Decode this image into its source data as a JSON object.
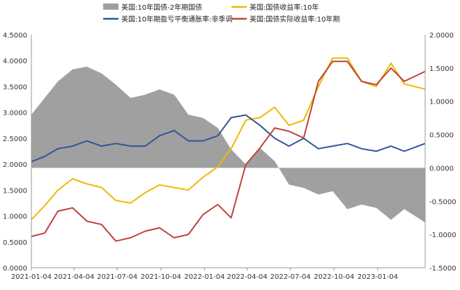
{
  "chart_data": {
    "type": "line",
    "title": "",
    "x_tick_labels": [
      "2021-01-04",
      "2021-04-04",
      "2021-07-04",
      "2021-10-04",
      "2022-01-04",
      "2022-04-04",
      "2022-07-04",
      "2022-10-04",
      "2023-01-04"
    ],
    "x_range": [
      "2021-01-04",
      "2023-04-14"
    ],
    "y_left": {
      "range": [
        0.0,
        4.5
      ],
      "ticks": [
        "0.0000",
        "0.5000",
        "1.0000",
        "1.5000",
        "2.0000",
        "2.5000",
        "3.0000",
        "3.5000",
        "4.0000",
        "4.5000"
      ]
    },
    "y_right": {
      "range": [
        -1.5,
        2.0
      ],
      "ticks": [
        "-1.5000",
        "-1.0000",
        "-0.5000",
        "0.0000",
        "0.5000",
        "1.0000",
        "1.5000",
        "2.0000"
      ]
    },
    "grid": false,
    "legend_position": "top",
    "colors": {
      "spread": "#a0a0a0",
      "yield": "#f0b800",
      "inflation": "#2e5597",
      "real_yield": "#c0413c"
    },
    "series": [
      {
        "name": "美国:10年国债-2年期国债",
        "type": "area",
        "axis": "right",
        "x": [
          "2021-01-04",
          "2021-02-01",
          "2021-03-01",
          "2021-04-01",
          "2021-05-01",
          "2021-06-01",
          "2021-07-01",
          "2021-08-01",
          "2021-09-01",
          "2021-10-01",
          "2021-11-01",
          "2021-12-01",
          "2022-01-01",
          "2022-02-01",
          "2022-03-01",
          "2022-04-01",
          "2022-05-01",
          "2022-06-01",
          "2022-07-01",
          "2022-08-01",
          "2022-09-01",
          "2022-10-01",
          "2022-11-01",
          "2022-12-01",
          "2023-01-01",
          "2023-02-01",
          "2023-03-01",
          "2023-04-14"
        ],
        "values": [
          0.8,
          1.05,
          1.3,
          1.48,
          1.52,
          1.42,
          1.25,
          1.05,
          1.1,
          1.18,
          1.1,
          0.8,
          0.75,
          0.6,
          0.28,
          0.05,
          0.3,
          0.1,
          -0.25,
          -0.3,
          -0.4,
          -0.35,
          -0.62,
          -0.55,
          -0.6,
          -0.78,
          -0.62,
          -0.82
        ]
      },
      {
        "name": "美国:国债收益率:10年",
        "type": "line",
        "axis": "left",
        "x": [
          "2021-01-04",
          "2021-02-01",
          "2021-03-01",
          "2021-04-01",
          "2021-05-01",
          "2021-06-01",
          "2021-07-01",
          "2021-08-01",
          "2021-09-01",
          "2021-10-01",
          "2021-11-01",
          "2021-12-01",
          "2022-01-01",
          "2022-02-01",
          "2022-03-01",
          "2022-04-01",
          "2022-05-01",
          "2022-06-01",
          "2022-07-01",
          "2022-08-01",
          "2022-09-01",
          "2022-10-01",
          "2022-11-01",
          "2022-12-01",
          "2023-01-01",
          "2023-02-01",
          "2023-03-01",
          "2023-04-14"
        ],
        "values": [
          0.93,
          1.2,
          1.5,
          1.72,
          1.62,
          1.55,
          1.3,
          1.25,
          1.45,
          1.6,
          1.55,
          1.5,
          1.75,
          1.95,
          2.3,
          2.85,
          2.9,
          3.1,
          2.75,
          2.85,
          3.5,
          4.05,
          4.05,
          3.6,
          3.5,
          3.95,
          3.55,
          3.45
        ]
      },
      {
        "name": "美国:10年期盈亏平衡通胀率:非季调",
        "type": "line",
        "axis": "left",
        "x": [
          "2021-01-04",
          "2021-02-01",
          "2021-03-01",
          "2021-04-01",
          "2021-05-01",
          "2021-06-01",
          "2021-07-01",
          "2021-08-01",
          "2021-09-01",
          "2021-10-01",
          "2021-11-01",
          "2021-12-01",
          "2022-01-01",
          "2022-02-01",
          "2022-03-01",
          "2022-04-01",
          "2022-05-01",
          "2022-06-01",
          "2022-07-01",
          "2022-08-01",
          "2022-09-01",
          "2022-10-01",
          "2022-11-01",
          "2022-12-01",
          "2023-01-01",
          "2023-02-01",
          "2023-03-01",
          "2023-04-14"
        ],
        "values": [
          2.05,
          2.15,
          2.3,
          2.35,
          2.45,
          2.35,
          2.4,
          2.35,
          2.35,
          2.55,
          2.65,
          2.45,
          2.45,
          2.55,
          2.9,
          2.95,
          2.75,
          2.5,
          2.35,
          2.5,
          2.3,
          2.35,
          2.4,
          2.3,
          2.25,
          2.35,
          2.25,
          2.4
        ]
      },
      {
        "name": "美国:国债实际收益率:10年期",
        "type": "line",
        "axis": "right",
        "x": [
          "2021-01-04",
          "2021-02-01",
          "2021-03-01",
          "2021-04-01",
          "2021-05-01",
          "2021-06-01",
          "2021-07-01",
          "2021-08-01",
          "2021-09-01",
          "2021-10-01",
          "2021-11-01",
          "2021-12-01",
          "2022-01-01",
          "2022-02-01",
          "2022-03-01",
          "2022-04-01",
          "2022-05-01",
          "2022-06-01",
          "2022-07-01",
          "2022-08-01",
          "2022-09-01",
          "2022-10-01",
          "2022-11-01",
          "2022-12-01",
          "2023-01-01",
          "2023-02-01",
          "2023-03-01",
          "2023-04-14"
        ],
        "values": [
          -1.03,
          -0.98,
          -0.65,
          -0.6,
          -0.8,
          -0.85,
          -1.1,
          -1.05,
          -0.95,
          -0.9,
          -1.05,
          -1.0,
          -0.7,
          -0.55,
          -0.75,
          0.05,
          0.3,
          0.6,
          0.55,
          0.45,
          1.3,
          1.6,
          1.6,
          1.3,
          1.25,
          1.5,
          1.3,
          1.45
        ]
      }
    ]
  }
}
